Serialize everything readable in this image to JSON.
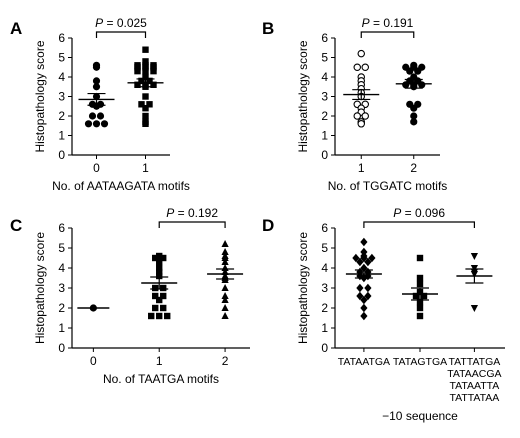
{
  "chart_data": [
    {
      "panel": "A",
      "type": "scatter",
      "ylabel": "Histopathology score",
      "xlabel": "No. of AATAAGATA motifs",
      "categories": [
        "0",
        "1"
      ],
      "ylim": [
        0,
        6
      ],
      "yticks": [
        "0",
        "1",
        "2",
        "3",
        "4",
        "5",
        "6"
      ],
      "comparison": {
        "from": 0,
        "to": 1,
        "label": "P = 0.025"
      },
      "series": [
        {
          "marker": "circle-filled",
          "values": [
            [
              4.6,
              4.5,
              3.8,
              3.5,
              3.0,
              2.6,
              2.6,
              2.5,
              2.0,
              2.0,
              1.6,
              1.6,
              1.6
            ]
          ],
          "mean": 2.85,
          "sem": 0.3
        },
        {
          "marker": "square-filled",
          "values": [
            [
              5.4,
              4.8,
              4.6,
              4.6,
              4.6,
              4.5,
              4.5,
              4.5,
              4.3,
              4.3,
              4.3,
              4.0,
              3.8,
              3.8,
              3.6,
              3.6,
              3.6,
              3.5,
              3.0,
              2.6,
              2.6,
              2.4,
              2.0,
              1.7,
              1.6
            ]
          ],
          "mean": 3.7,
          "sem": 0.2
        }
      ]
    },
    {
      "panel": "B",
      "type": "scatter",
      "ylabel": "Histopathology score",
      "xlabel": "No. of TGGATC motifs",
      "categories": [
        "1",
        "2"
      ],
      "ylim": [
        0,
        6
      ],
      "yticks": [
        "0",
        "1",
        "2",
        "3",
        "4",
        "5",
        "6"
      ],
      "comparison": {
        "from": 0,
        "to": 1,
        "label": "P = 0.191"
      },
      "series": [
        {
          "marker": "circle-open",
          "values": [
            [
              5.2,
              4.5,
              4.5,
              4.0,
              3.8,
              3.6,
              3.4,
              3.2,
              3.0,
              2.6,
              2.6,
              2.4,
              2.2,
              2.0,
              2.0,
              1.7,
              1.6
            ]
          ],
          "mean": 3.1,
          "sem": 0.25
        },
        {
          "marker": "circle-filled",
          "values": [
            [
              4.6,
              4.5,
              4.5,
              4.5,
              4.3,
              4.3,
              4.0,
              3.8,
              3.8,
              3.6,
              3.6,
              3.6,
              3.5,
              2.6,
              2.6,
              2.4,
              2.0,
              1.7
            ]
          ],
          "mean": 3.65,
          "sem": 0.22
        }
      ]
    },
    {
      "panel": "C",
      "type": "scatter",
      "ylabel": "Histopathology score",
      "xlabel": "No. of TAATGA motifs",
      "categories": [
        "0",
        "1",
        "2"
      ],
      "ylim": [
        0,
        6
      ],
      "yticks": [
        "0",
        "1",
        "2",
        "3",
        "4",
        "5",
        "6"
      ],
      "comparison": {
        "from": 1,
        "to": 2,
        "label": "P = 0.192"
      },
      "series": [
        {
          "marker": "circle-filled",
          "values": [
            [
              2.0
            ]
          ],
          "mean": 2.0,
          "sem": 0
        },
        {
          "marker": "square-filled",
          "values": [
            [
              4.6,
              4.5,
              4.5,
              4.3,
              4.0,
              3.8,
              3.6,
              3.0,
              3.0,
              2.6,
              2.6,
              2.4,
              2.0,
              2.0,
              1.6,
              1.6,
              1.6
            ]
          ],
          "mean": 3.25,
          "sem": 0.3
        },
        {
          "marker": "triangle-up-filled",
          "values": [
            [
              5.2,
              4.8,
              4.6,
              4.5,
              4.3,
              4.0,
              3.8,
              3.6,
              3.5,
              3.4,
              3.0,
              2.6,
              2.4,
              2.0,
              1.6
            ]
          ],
          "mean": 3.7,
          "sem": 0.25
        }
      ]
    },
    {
      "panel": "D",
      "type": "scatter",
      "ylabel": "Histopathology score",
      "xlabel": "−10 sequence",
      "categories": [
        "TATAATGA",
        "TATAGTGA",
        "TATTATGA\nTATAACGA\nTATAATTA\nTATTATAA"
      ],
      "ylim": [
        0,
        6
      ],
      "yticks": [
        "0",
        "1",
        "2",
        "3",
        "4",
        "5",
        "6"
      ],
      "comparison": {
        "from": 0,
        "to": 2,
        "label": "P = 0.096"
      },
      "series": [
        {
          "marker": "diamond-filled",
          "values": [
            [
              5.3,
              4.8,
              4.6,
              4.5,
              4.5,
              4.5,
              4.3,
              4.3,
              4.0,
              3.8,
              3.8,
              3.6,
              3.6,
              3.5,
              3.0,
              3.0,
              2.6,
              2.6,
              2.4,
              2.0,
              1.6
            ]
          ],
          "mean": 3.7,
          "sem": 0.2
        },
        {
          "marker": "square-filled",
          "values": [
            [
              4.5,
              3.5,
              3.2,
              2.8,
              2.6,
              2.6,
              2.3,
              2.0,
              1.6
            ]
          ],
          "mean": 2.7,
          "sem": 0.3
        },
        {
          "marker": "triangle-down-filled",
          "values": [
            [
              4.6,
              4.0,
              3.8,
              3.7,
              2.0
            ]
          ],
          "mean": 3.6,
          "sem": 0.35
        }
      ]
    }
  ],
  "colors": {
    "ink": "#000000",
    "background": "#ffffff"
  }
}
